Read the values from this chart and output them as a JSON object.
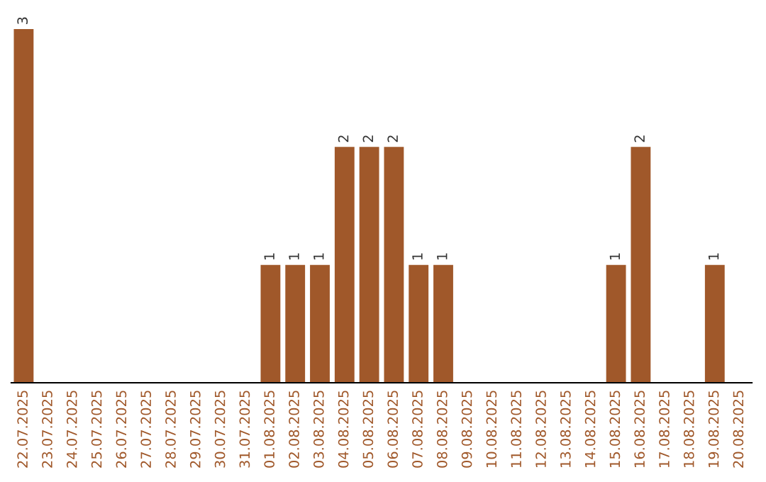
{
  "chart_data": {
    "type": "bar",
    "categories": [
      "22.07.2025",
      "23.07.2025",
      "24.07.2025",
      "25.07.2025",
      "26.07.2025",
      "27.07.2025",
      "28.07.2025",
      "29.07.2025",
      "30.07.2025",
      "31.07.2025",
      "01.08.2025",
      "02.08.2025",
      "03.08.2025",
      "04.08.2025",
      "05.08.2025",
      "06.08.2025",
      "07.08.2025",
      "08.08.2025",
      "09.08.2025",
      "10.08.2025",
      "11.08.2025",
      "12.08.2025",
      "13.08.2025",
      "14.08.2025",
      "15.08.2025",
      "16.08.2025",
      "17.08.2025",
      "18.08.2025",
      "19.08.2025",
      "20.08.2025"
    ],
    "values": [
      3,
      0,
      0,
      0,
      0,
      0,
      0,
      0,
      0,
      0,
      1,
      1,
      1,
      2,
      2,
      2,
      1,
      1,
      0,
      0,
      0,
      0,
      0,
      0,
      1,
      2,
      0,
      0,
      1,
      0
    ],
    "value_labels": [
      "3",
      null,
      null,
      null,
      null,
      null,
      null,
      null,
      null,
      null,
      "1",
      "1",
      "1",
      "2",
      "2",
      "2",
      "1",
      "1",
      null,
      null,
      null,
      null,
      null,
      null,
      "1",
      "2",
      null,
      null,
      "1",
      null
    ],
    "color": "#a0582a",
    "tick_labels": "x",
    "grid": false,
    "legend": false
  }
}
